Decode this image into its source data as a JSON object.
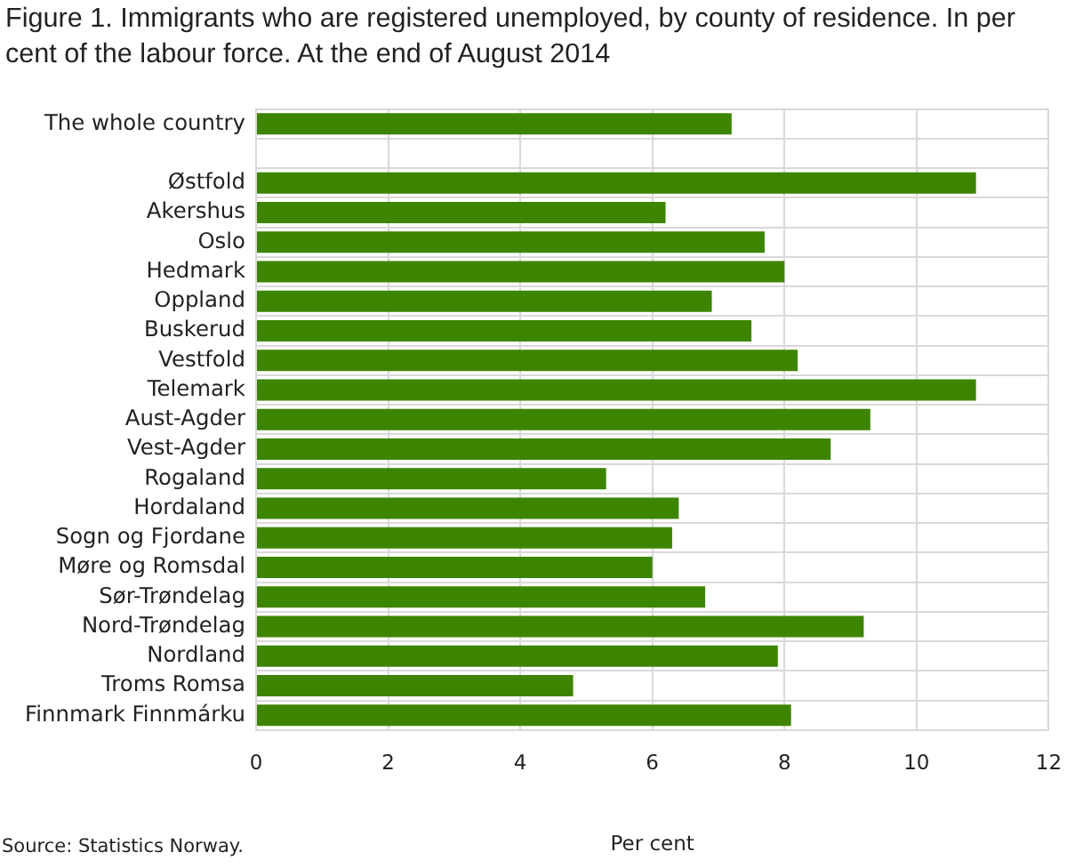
{
  "chart_data": {
    "type": "bar",
    "orientation": "horizontal",
    "title": "Figure 1. Immigrants who are registered unemployed, by county of residence. In per cent of the labour force. At the end of August 2014",
    "xlabel": "Per cent",
    "categories": [
      "The whole country",
      null,
      "Østfold",
      "Akershus",
      "Oslo",
      "Hedmark",
      "Oppland",
      "Buskerud",
      "Vestfold",
      "Telemark",
      "Aust-Agder",
      "Vest-Agder",
      "Rogaland",
      "Hordaland",
      "Sogn og Fjordane",
      "Møre og Romsdal",
      "Sør-Trøndelag",
      "Nord-Trøndelag",
      "Nordland",
      "Troms Romsa",
      "Finnmark Finnmárku"
    ],
    "values": [
      7.2,
      null,
      10.9,
      6.2,
      7.7,
      8.0,
      6.9,
      7.5,
      8.2,
      10.9,
      9.3,
      8.7,
      5.3,
      6.4,
      6.3,
      6.0,
      6.8,
      9.2,
      7.9,
      4.8,
      8.1
    ],
    "color": "#3d8500",
    "xlim": [
      0,
      12
    ],
    "xticks": [
      0,
      2,
      4,
      6,
      8,
      10,
      12
    ],
    "grid": true,
    "annotations": [
      "Source: Statistics Norway."
    ]
  }
}
